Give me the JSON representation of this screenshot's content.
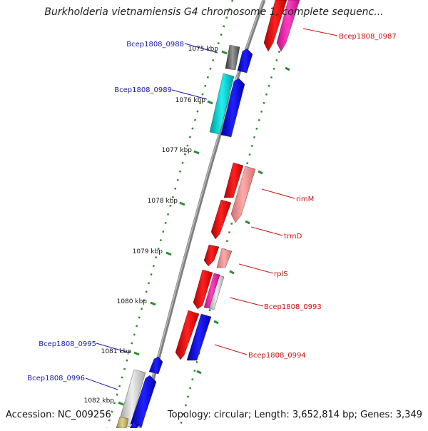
{
  "title": "Burkholderia vietnamiensis G4 chromosome 1, complete sequenc...",
  "footer": {
    "accession": "Accession: NC_009256",
    "summary": "Topology: circular; Length: 3,652,814 bp; Genes: 3,349"
  },
  "colors": {
    "backbone": "#7f7f7f",
    "tick": "#2e8b2e",
    "label_forward": "#1a1aa8",
    "label_reverse": "#cc1111"
  },
  "ticks": [
    {
      "label": "1075 kbp"
    },
    {
      "label": "1076 kbp"
    },
    {
      "label": "1077 kbp"
    },
    {
      "label": "1078 kbp"
    },
    {
      "label": "1079 kbp"
    },
    {
      "label": "1080 kbp"
    },
    {
      "label": "1081 kbp"
    },
    {
      "label": "1082 kbp"
    }
  ],
  "labels": [
    {
      "text": "Bcep1808_0987",
      "strand": "reverse"
    },
    {
      "text": "Bcep1808_0988",
      "strand": "forward"
    },
    {
      "text": "Bcep1808_0989",
      "strand": "forward"
    },
    {
      "text": "rimM",
      "strand": "reverse"
    },
    {
      "text": "trmD",
      "strand": "reverse"
    },
    {
      "text": "rplS",
      "strand": "reverse"
    },
    {
      "text": "Bcep1808_0993",
      "strand": "reverse"
    },
    {
      "text": "Bcep1808_0994",
      "strand": "reverse"
    },
    {
      "text": "Bcep1808_0995",
      "strand": "forward"
    },
    {
      "text": "Bcep1808_0996",
      "strand": "forward"
    }
  ]
}
